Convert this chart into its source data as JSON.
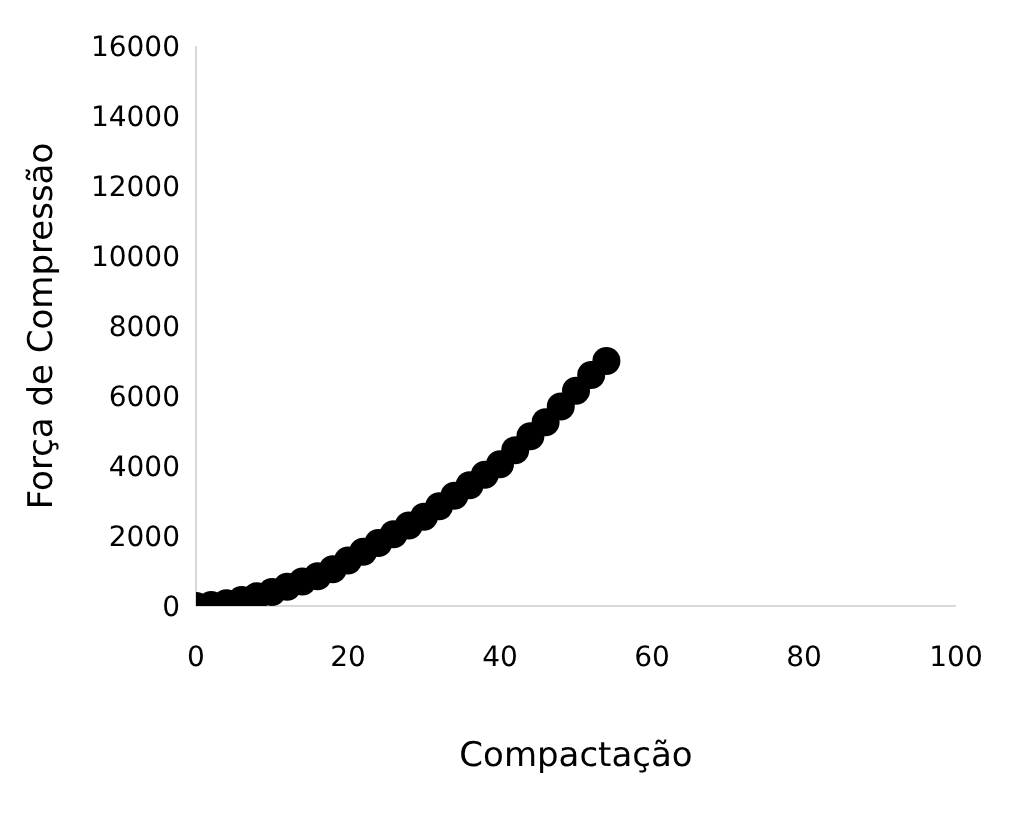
{
  "chart_data": {
    "type": "scatter",
    "xlabel": "Compactação",
    "ylabel": "Força de Compressão",
    "x": [
      0,
      2,
      4,
      6,
      8,
      10,
      12,
      14,
      16,
      18,
      20,
      22,
      24,
      26,
      28,
      30,
      32,
      34,
      36,
      38,
      40,
      42,
      44,
      46,
      48,
      50,
      52,
      54
    ],
    "series": [
      {
        "color": "#000000",
        "values": [
          0,
          30,
          80,
          170,
          280,
          400,
          550,
          700,
          850,
          1050,
          1300,
          1550,
          1800,
          2050,
          2300,
          2550,
          2850,
          3150,
          3450,
          3750,
          4050,
          4450,
          4850,
          5250,
          5700,
          6150,
          6600,
          7000
        ]
      }
    ],
    "xlim": [
      0,
      100
    ],
    "xticks": [
      0,
      20,
      40,
      60,
      80,
      100
    ],
    "ylim": [
      0,
      16000
    ],
    "yticks": [
      0,
      2000,
      4000,
      6000,
      8000,
      10000,
      12000,
      14000,
      16000
    ],
    "marker": "circle",
    "grid": false
  }
}
